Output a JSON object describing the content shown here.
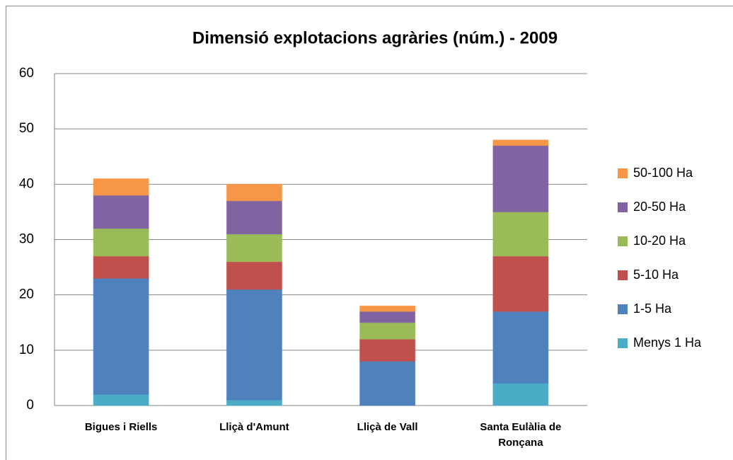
{
  "chart_data": {
    "type": "stacked-bar",
    "title": "Dimensió explotacions agràries (núm.) - 2009",
    "categories": [
      "Bigues i Riells",
      "Lliçà d'Amunt",
      "Lliçà de Vall",
      "Santa Eulàlia de Ronçana"
    ],
    "series": [
      {
        "name": "Menys 1 Ha",
        "color": "#4bacc6",
        "values": [
          2,
          1,
          0,
          4
        ]
      },
      {
        "name": "1-5 Ha",
        "color": "#4f81bd",
        "values": [
          21,
          20,
          8,
          13
        ]
      },
      {
        "name": "5-10 Ha",
        "color": "#c0504d",
        "values": [
          4,
          5,
          4,
          10
        ]
      },
      {
        "name": "10-20 Ha",
        "color": "#9bbb59",
        "values": [
          5,
          5,
          3,
          8
        ]
      },
      {
        "name": "20-50 Ha",
        "color": "#8064a2",
        "values": [
          6,
          6,
          2,
          12
        ]
      },
      {
        "name": "50-100 Ha",
        "color": "#f79646",
        "values": [
          3,
          3,
          1,
          1
        ]
      }
    ],
    "ylim": [
      0,
      60
    ],
    "yticks": [
      0,
      10,
      20,
      30,
      40,
      50,
      60
    ],
    "grid": true,
    "legend": "right"
  }
}
